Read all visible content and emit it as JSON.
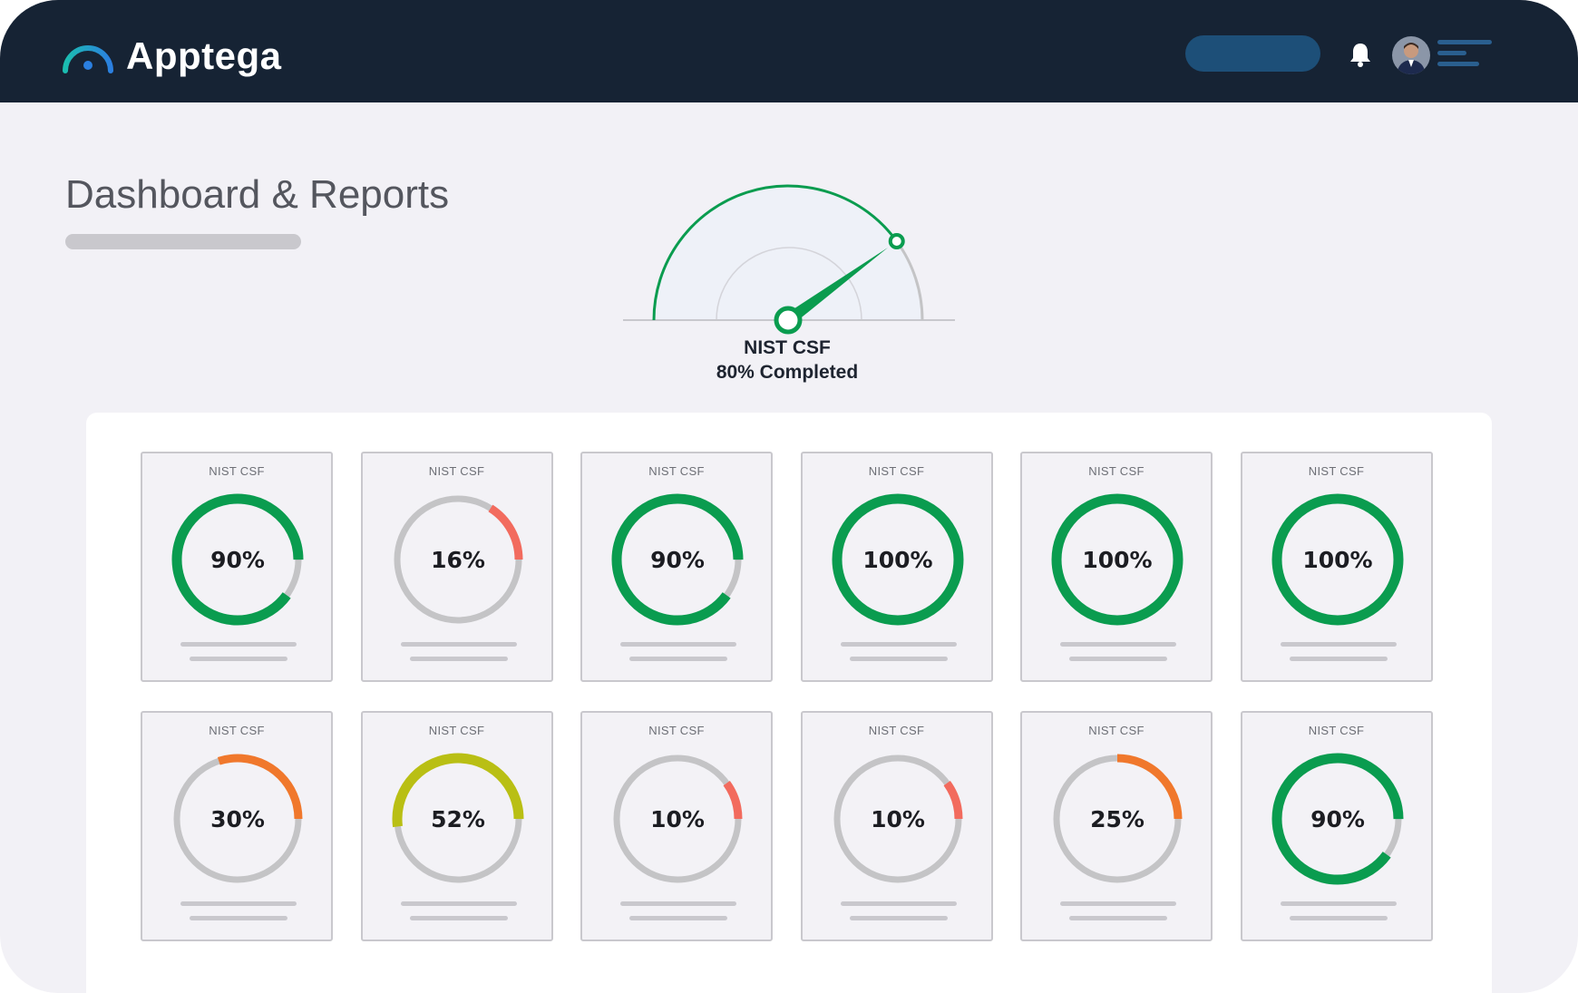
{
  "header": {
    "brand_name": "Apptega",
    "logo_icon": "apptega-arc-logo-icon",
    "notification_icon": "bell-icon",
    "avatar_icon": "user-avatar-icon",
    "menu_icon": "hamburger-menu-icon",
    "colors": {
      "bar": "#162334",
      "pill": "#1d4f78",
      "logo_gradient": [
        "#1bbdb0",
        "#2b7fe0"
      ]
    }
  },
  "page": {
    "title": "Dashboard & Reports"
  },
  "gauge": {
    "title": "NIST CSF",
    "status": "80% Completed",
    "value_percent": 80,
    "color": "#0a9c4f"
  },
  "frameworks": [
    {
      "label": "NIST CSF",
      "percent_text": "90%",
      "value": 90,
      "color": "#0a9c4f"
    },
    {
      "label": "NIST CSF",
      "percent_text": "16%",
      "value": 16,
      "color": "#f26b5e"
    },
    {
      "label": "NIST CSF",
      "percent_text": "90%",
      "value": 90,
      "color": "#0a9c4f"
    },
    {
      "label": "NIST CSF",
      "percent_text": "100%",
      "value": 100,
      "color": "#0a9c4f"
    },
    {
      "label": "NIST CSF",
      "percent_text": "100%",
      "value": 100,
      "color": "#0a9c4f"
    },
    {
      "label": "NIST CSF",
      "percent_text": "100%",
      "value": 100,
      "color": "#0a9c4f"
    },
    {
      "label": "NIST CSF",
      "percent_text": "30%",
      "value": 30,
      "color": "#f0782c"
    },
    {
      "label": "NIST CSF",
      "percent_text": "52%",
      "value": 52,
      "color": "#b9bf14"
    },
    {
      "label": "NIST CSF",
      "percent_text": "10%",
      "value": 10,
      "color": "#f26b5e"
    },
    {
      "label": "NIST CSF",
      "percent_text": "10%",
      "value": 10,
      "color": "#f26b5e"
    },
    {
      "label": "NIST CSF",
      "percent_text": "25%",
      "value": 25,
      "color": "#f0782c"
    },
    {
      "label": "NIST CSF",
      "percent_text": "90%",
      "value": 90,
      "color": "#0a9c4f"
    }
  ],
  "ring_track_color": "#c4c4c6"
}
